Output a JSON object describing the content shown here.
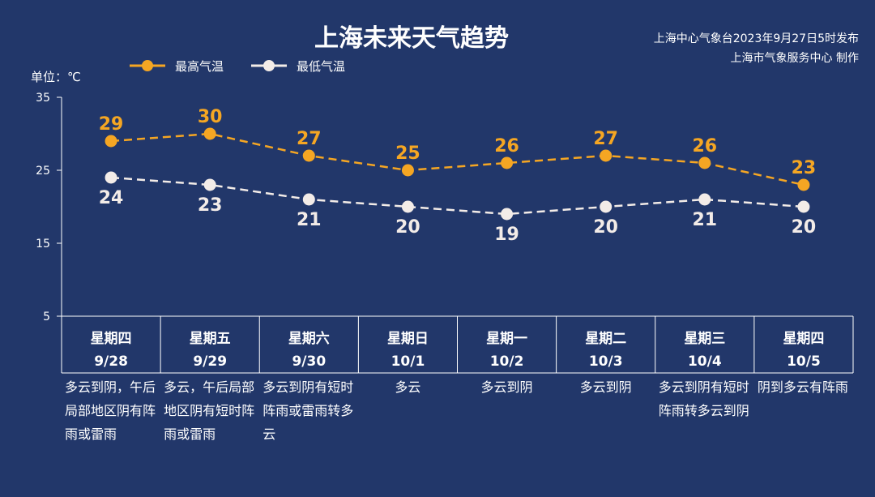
{
  "title": "上海未来天气趋势",
  "issuer": {
    "line1": "上海中心气象台2023年9月27日5时发布",
    "line2": "上海市气象服务中心 制作"
  },
  "colors": {
    "background": "#22376a",
    "high": "#f5a623",
    "low": "#f3ece8"
  },
  "chart_data": {
    "type": "line",
    "title": "上海未来天气趋势",
    "unit_label": "单位：℃",
    "ylim": [
      5,
      35
    ],
    "yticks": [
      5,
      15,
      25,
      35
    ],
    "grid": false,
    "legend_position": "top-left",
    "categories": [
      "星期四 9/28",
      "星期五 9/29",
      "星期六 9/30",
      "星期日 10/1",
      "星期一 10/2",
      "星期二 10/3",
      "星期三 10/4",
      "星期四 10/5"
    ],
    "series": [
      {
        "name": "最高气温",
        "values": [
          29,
          30,
          27,
          25,
          26,
          27,
          26,
          23
        ],
        "color": "#f5a623",
        "style": "dashed"
      },
      {
        "name": "最低气温",
        "values": [
          24,
          23,
          21,
          20,
          19,
          20,
          21,
          20
        ],
        "color": "#f3ece8",
        "style": "dashed"
      }
    ]
  },
  "days": [
    {
      "weekday": "星期四",
      "date": "9/28",
      "desc": "多云到阴，午后局部地区阴有阵雨或雷雨"
    },
    {
      "weekday": "星期五",
      "date": "9/29",
      "desc": "多云，午后局部地区阴有短时阵雨或雷雨"
    },
    {
      "weekday": "星期六",
      "date": "9/30",
      "desc": "多云到阴有短时阵雨或雷雨转多云"
    },
    {
      "weekday": "星期日",
      "date": "10/1",
      "desc": "多云"
    },
    {
      "weekday": "星期一",
      "date": "10/2",
      "desc": "多云到阴"
    },
    {
      "weekday": "星期二",
      "date": "10/3",
      "desc": "多云到阴"
    },
    {
      "weekday": "星期三",
      "date": "10/4",
      "desc": "多云到阴有短时阵雨转多云到阴"
    },
    {
      "weekday": "星期四",
      "date": "10/5",
      "desc": "阴到多云有阵雨"
    }
  ]
}
